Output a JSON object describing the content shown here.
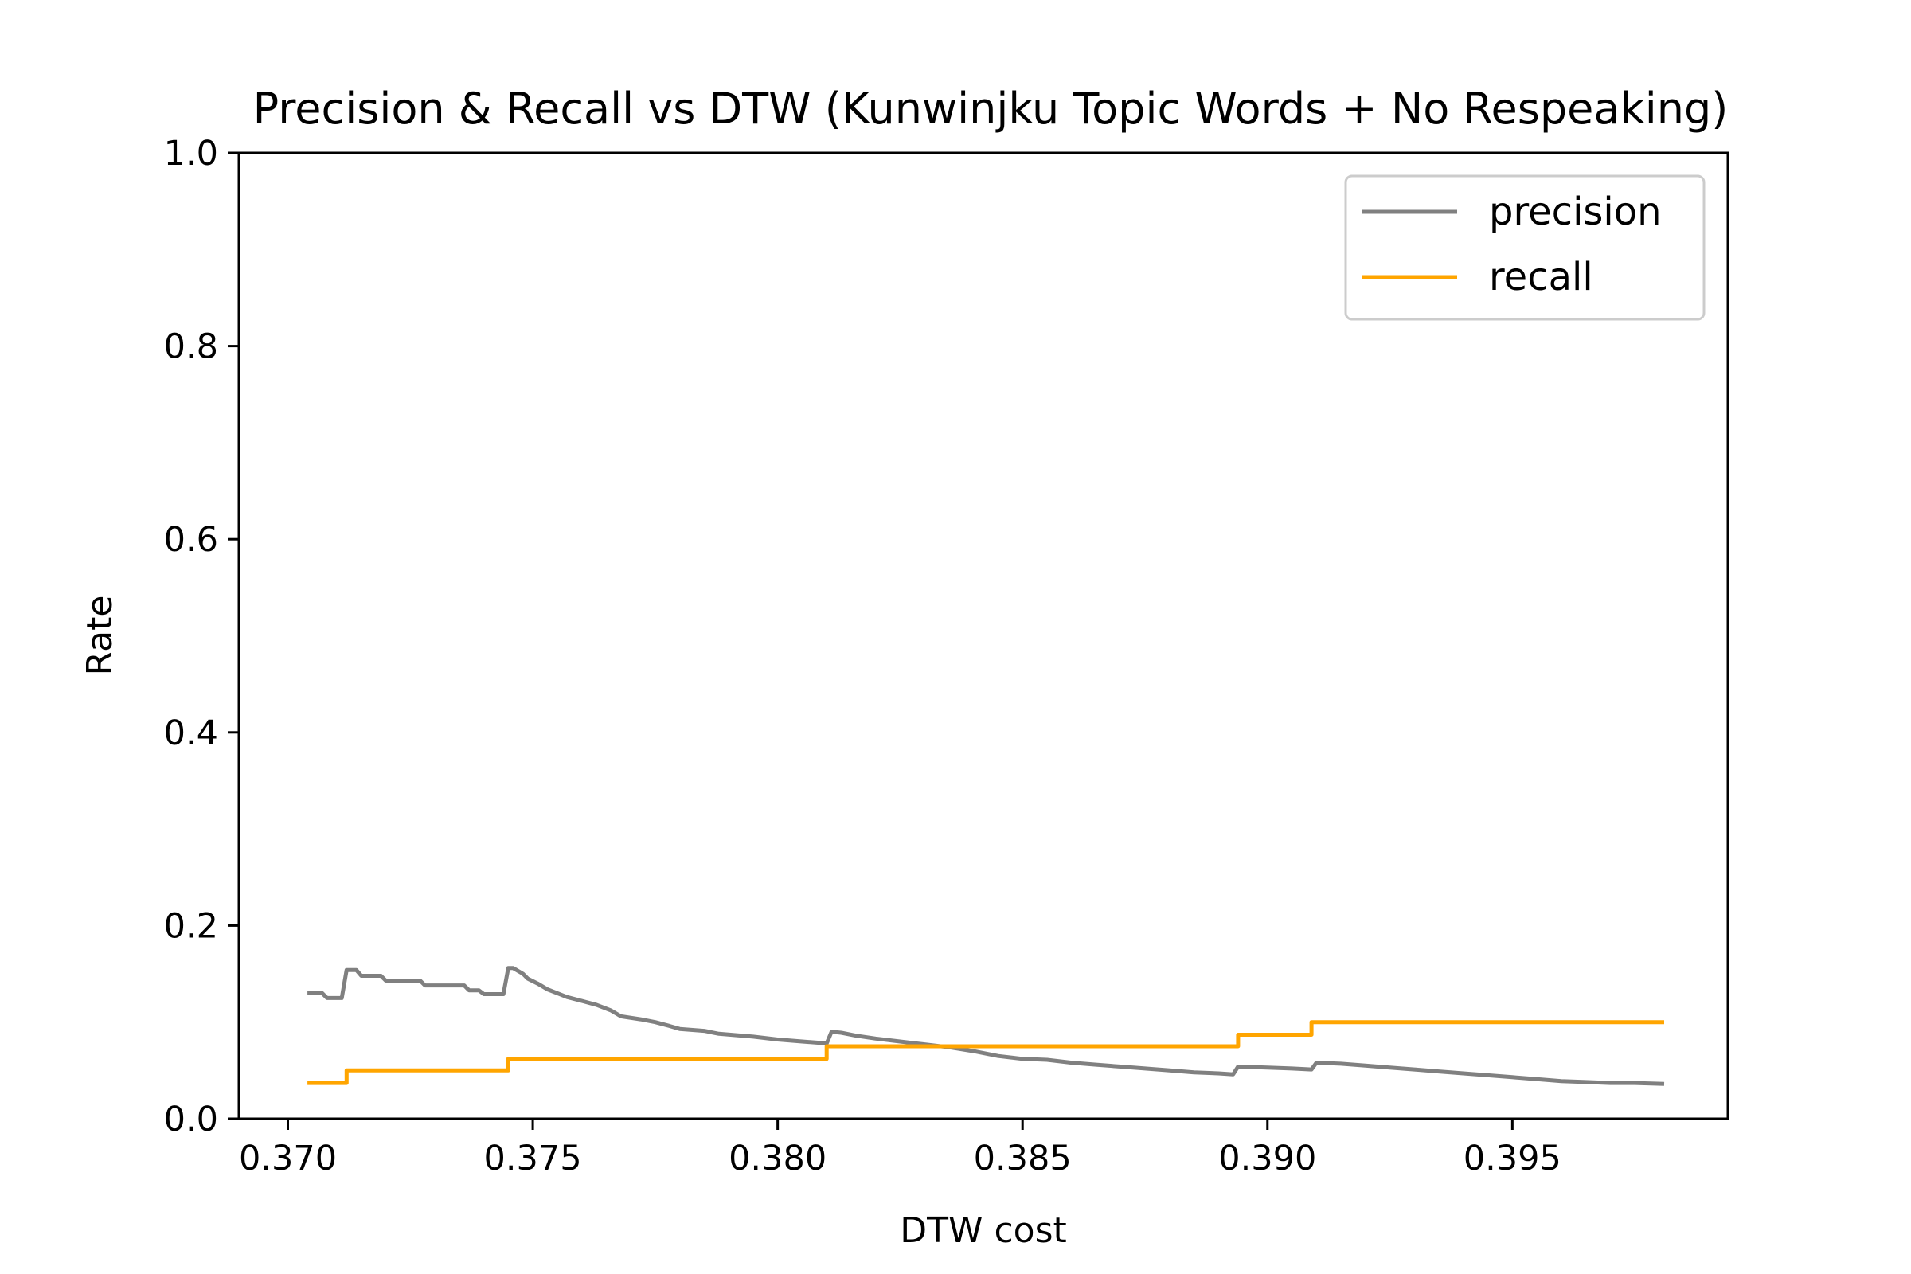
{
  "chart_data": {
    "type": "line",
    "title": "Precision & Recall vs DTW  (Kunwinjku Topic Words + No Respeaking)",
    "xlabel": "DTW cost",
    "ylabel": "Rate",
    "xlim": [
      0.369,
      0.3994
    ],
    "ylim": [
      0.0,
      1.0
    ],
    "x_ticks": [
      "0.370",
      "0.375",
      "0.380",
      "0.385",
      "0.390",
      "0.395"
    ],
    "y_ticks": [
      "0.0",
      "0.2",
      "0.4",
      "0.6",
      "0.8",
      "1.0"
    ],
    "grid": false,
    "legend_position": "top-right",
    "series": [
      {
        "name": "precision",
        "color": "#808080",
        "points": [
          [
            0.3704,
            0.13
          ],
          [
            0.3707,
            0.13
          ],
          [
            0.3708,
            0.125
          ],
          [
            0.3711,
            0.125
          ],
          [
            0.3712,
            0.154
          ],
          [
            0.3714,
            0.154
          ],
          [
            0.3715,
            0.148
          ],
          [
            0.3719,
            0.148
          ],
          [
            0.372,
            0.143
          ],
          [
            0.3727,
            0.143
          ],
          [
            0.3728,
            0.138
          ],
          [
            0.3736,
            0.138
          ],
          [
            0.3737,
            0.133
          ],
          [
            0.3739,
            0.133
          ],
          [
            0.374,
            0.129
          ],
          [
            0.3744,
            0.129
          ],
          [
            0.3745,
            0.156
          ],
          [
            0.3746,
            0.156
          ],
          [
            0.3748,
            0.15
          ],
          [
            0.3749,
            0.145
          ],
          [
            0.3751,
            0.14
          ],
          [
            0.3753,
            0.134
          ],
          [
            0.3755,
            0.13
          ],
          [
            0.3757,
            0.126
          ],
          [
            0.376,
            0.122
          ],
          [
            0.3763,
            0.118
          ],
          [
            0.3766,
            0.112
          ],
          [
            0.3768,
            0.106
          ],
          [
            0.3772,
            0.103
          ],
          [
            0.3775,
            0.1
          ],
          [
            0.3778,
            0.096
          ],
          [
            0.378,
            0.093
          ],
          [
            0.3785,
            0.091
          ],
          [
            0.3788,
            0.088
          ],
          [
            0.3795,
            0.085
          ],
          [
            0.38,
            0.082
          ],
          [
            0.3805,
            0.08
          ],
          [
            0.381,
            0.078
          ],
          [
            0.3811,
            0.09
          ],
          [
            0.3813,
            0.089
          ],
          [
            0.3816,
            0.086
          ],
          [
            0.382,
            0.083
          ],
          [
            0.3825,
            0.08
          ],
          [
            0.383,
            0.077
          ],
          [
            0.3835,
            0.074
          ],
          [
            0.384,
            0.07
          ],
          [
            0.3845,
            0.065
          ],
          [
            0.385,
            0.062
          ],
          [
            0.3855,
            0.061
          ],
          [
            0.386,
            0.058
          ],
          [
            0.3865,
            0.056
          ],
          [
            0.387,
            0.054
          ],
          [
            0.3875,
            0.052
          ],
          [
            0.388,
            0.05
          ],
          [
            0.3885,
            0.048
          ],
          [
            0.389,
            0.047
          ],
          [
            0.3893,
            0.046
          ],
          [
            0.3894,
            0.054
          ],
          [
            0.39,
            0.053
          ],
          [
            0.3905,
            0.052
          ],
          [
            0.3909,
            0.051
          ],
          [
            0.391,
            0.058
          ],
          [
            0.3915,
            0.057
          ],
          [
            0.392,
            0.055
          ],
          [
            0.3925,
            0.053
          ],
          [
            0.393,
            0.051
          ],
          [
            0.3935,
            0.049
          ],
          [
            0.394,
            0.047
          ],
          [
            0.3945,
            0.045
          ],
          [
            0.395,
            0.043
          ],
          [
            0.3955,
            0.041
          ],
          [
            0.396,
            0.039
          ],
          [
            0.3965,
            0.038
          ],
          [
            0.397,
            0.037
          ],
          [
            0.3975,
            0.037
          ],
          [
            0.3981,
            0.036
          ]
        ]
      },
      {
        "name": "recall",
        "color": "#ffa500",
        "points": [
          [
            0.3704,
            0.037
          ],
          [
            0.3712,
            0.037
          ],
          [
            0.3712,
            0.05
          ],
          [
            0.3745,
            0.05
          ],
          [
            0.3745,
            0.062
          ],
          [
            0.381,
            0.062
          ],
          [
            0.381,
            0.075
          ],
          [
            0.3894,
            0.075
          ],
          [
            0.3894,
            0.087
          ],
          [
            0.3909,
            0.087
          ],
          [
            0.3909,
            0.1
          ],
          [
            0.3981,
            0.1
          ]
        ]
      }
    ]
  }
}
